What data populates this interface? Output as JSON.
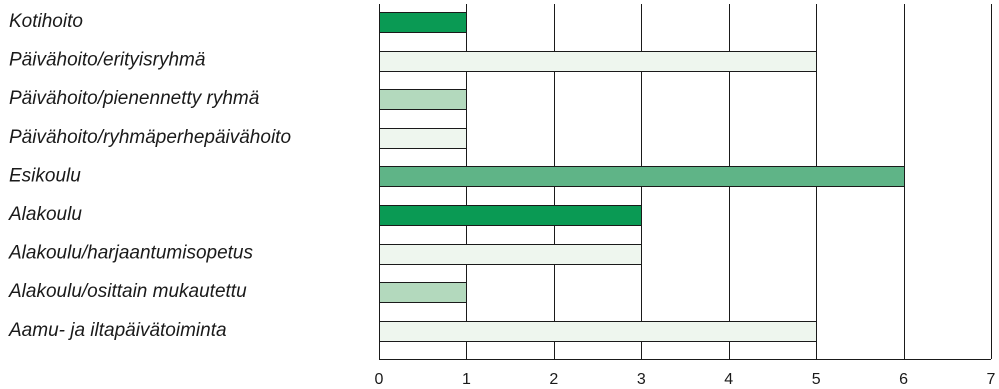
{
  "chart_data": {
    "type": "bar",
    "orientation": "horizontal",
    "title": "",
    "xlabel": "",
    "ylabel": "",
    "xlim": [
      0,
      7
    ],
    "x_ticks": [
      0,
      1,
      2,
      3,
      4,
      5,
      6,
      7
    ],
    "grid": true,
    "categories": [
      "Kotihoito",
      "Päivähoito/erityisryhmä",
      "Päivähoito/pienennetty ryhmä",
      "Päivähoito/ryhmäperhepäivähoito",
      "Esikoulu",
      "Alakoulu",
      "Alakoulu/harjaantumisopetus",
      "Alakoulu/osittain mukautettu",
      "Aamu- ja iltapäivätoiminta"
    ],
    "values": [
      1,
      5,
      1,
      1,
      6,
      3,
      3,
      1,
      5
    ],
    "bar_colors": [
      "#0a9a54",
      "#eef6ee",
      "#b3d9bd",
      "#eef6ee",
      "#5fb487",
      "#0a9a54",
      "#eef6ee",
      "#b3d9bd",
      "#eef6ee"
    ]
  }
}
